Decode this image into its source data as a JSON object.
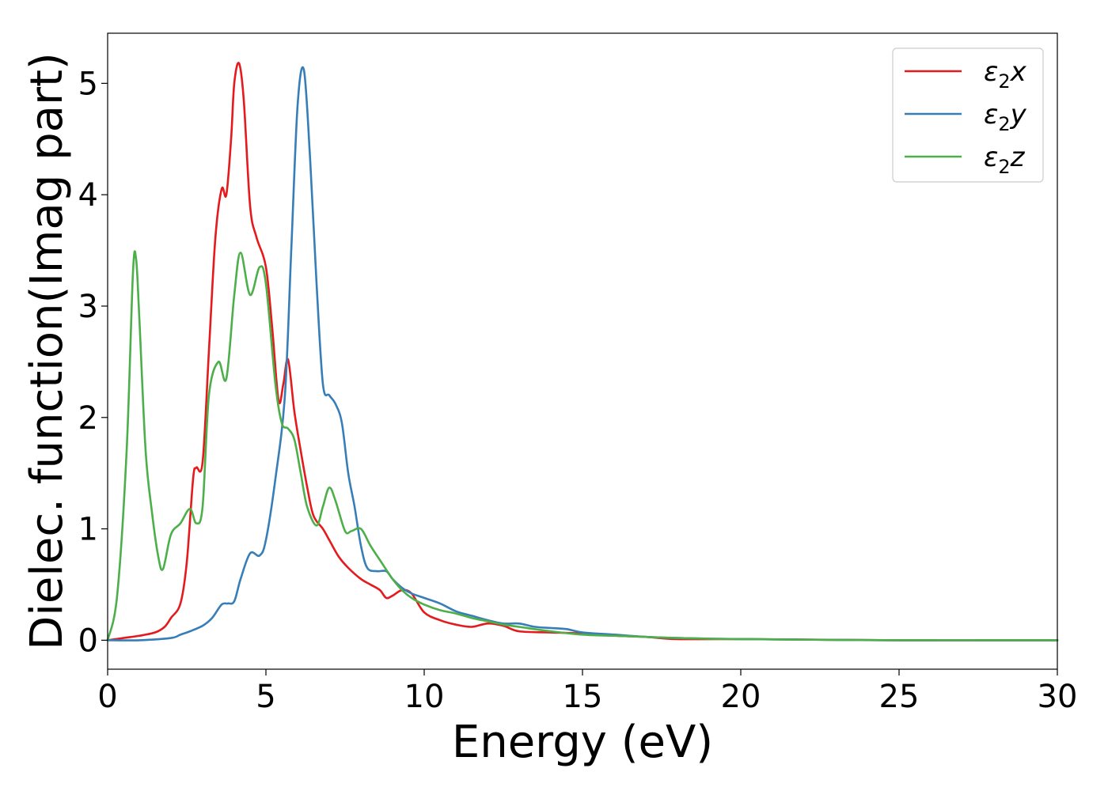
{
  "chart_data": {
    "type": "line",
    "xlabel": "Energy (eV)",
    "ylabel": "Dielec. function(Imag part)",
    "xlim": [
      0,
      30
    ],
    "ylim": [
      -0.26,
      5.45
    ],
    "xticks": [
      "0",
      "5",
      "10",
      "15",
      "20",
      "25",
      "30"
    ],
    "yticks": [
      "0",
      "1",
      "2",
      "3",
      "4",
      "5"
    ],
    "grid": false,
    "legend_position": "top-right",
    "series": [
      {
        "name": "ε2x",
        "legend_base": "ε",
        "legend_sub": "2",
        "legend_var": "x",
        "color": "#e41a1c",
        "x": [
          0,
          0.5,
          1.0,
          1.5,
          1.8,
          2.0,
          2.3,
          2.5,
          2.7,
          2.8,
          3.0,
          3.2,
          3.4,
          3.6,
          3.75,
          3.9,
          4.0,
          4.15,
          4.3,
          4.5,
          4.7,
          5.0,
          5.2,
          5.4,
          5.55,
          5.7,
          5.9,
          6.1,
          6.3,
          6.5,
          6.8,
          7.0,
          7.3,
          7.6,
          8.0,
          8.3,
          8.6,
          8.8,
          9.0,
          9.3,
          9.6,
          10.0,
          10.5,
          11.0,
          11.5,
          12.0,
          12.5,
          13.0,
          14.0,
          15.0,
          16.0,
          17.0,
          18.0,
          20.0,
          25.0,
          30.0
        ],
        "y": [
          0.0,
          0.02,
          0.04,
          0.07,
          0.12,
          0.2,
          0.33,
          0.7,
          1.45,
          1.55,
          1.6,
          2.6,
          3.6,
          4.05,
          4.0,
          4.5,
          5.0,
          5.18,
          4.85,
          3.9,
          3.62,
          3.35,
          2.8,
          2.15,
          2.3,
          2.52,
          2.05,
          1.7,
          1.38,
          1.12,
          1.0,
          0.9,
          0.75,
          0.65,
          0.55,
          0.5,
          0.45,
          0.38,
          0.4,
          0.45,
          0.42,
          0.25,
          0.18,
          0.14,
          0.12,
          0.15,
          0.13,
          0.08,
          0.07,
          0.06,
          0.04,
          0.03,
          0.01,
          0.01,
          0.0,
          0.0
        ]
      },
      {
        "name": "ε2y",
        "legend_base": "ε",
        "legend_sub": "2",
        "legend_var": "y",
        "color": "#377eb8",
        "x": [
          0,
          1.0,
          2.0,
          2.3,
          2.6,
          3.0,
          3.3,
          3.6,
          3.8,
          4.0,
          4.2,
          4.5,
          4.8,
          5.0,
          5.3,
          5.6,
          5.8,
          6.0,
          6.2,
          6.4,
          6.6,
          6.8,
          7.0,
          7.2,
          7.4,
          7.6,
          7.8,
          8.0,
          8.2,
          8.5,
          8.8,
          9.0,
          9.3,
          9.6,
          10.0,
          10.5,
          11.0,
          11.5,
          12.0,
          12.5,
          13.0,
          13.5,
          14.0,
          14.5,
          15.0,
          16.0,
          17.0,
          18.0,
          20.0,
          25.0,
          30.0
        ],
        "y": [
          0.0,
          0.0,
          0.02,
          0.05,
          0.08,
          0.13,
          0.2,
          0.32,
          0.33,
          0.35,
          0.55,
          0.78,
          0.76,
          0.9,
          1.45,
          2.2,
          3.5,
          4.8,
          5.12,
          4.3,
          3.2,
          2.3,
          2.2,
          2.12,
          1.95,
          1.5,
          1.2,
          0.85,
          0.65,
          0.62,
          0.62,
          0.55,
          0.47,
          0.42,
          0.38,
          0.33,
          0.26,
          0.22,
          0.18,
          0.15,
          0.15,
          0.12,
          0.11,
          0.1,
          0.07,
          0.05,
          0.03,
          0.02,
          0.01,
          0.0,
          0.0
        ]
      },
      {
        "name": "ε2z",
        "legend_base": "ε",
        "legend_sub": "2",
        "legend_var": "z",
        "color": "#4daf4a",
        "x": [
          0,
          0.3,
          0.6,
          0.8,
          0.9,
          1.0,
          1.2,
          1.4,
          1.6,
          1.75,
          2.0,
          2.3,
          2.6,
          2.8,
          3.0,
          3.2,
          3.5,
          3.75,
          4.0,
          4.2,
          4.5,
          4.8,
          5.0,
          5.3,
          5.5,
          5.7,
          5.9,
          6.1,
          6.3,
          6.6,
          6.8,
          7.0,
          7.2,
          7.5,
          7.7,
          8.0,
          8.3,
          8.6,
          9.0,
          9.3,
          9.6,
          10.0,
          10.5,
          11.0,
          11.5,
          12.0,
          12.5,
          13.0,
          14.0,
          15.0,
          16.0,
          17.0,
          18.0,
          20.0,
          25.0,
          30.0
        ],
        "y": [
          0.0,
          0.4,
          1.7,
          3.3,
          3.42,
          2.9,
          1.7,
          1.15,
          0.75,
          0.64,
          0.95,
          1.05,
          1.18,
          1.05,
          1.2,
          2.2,
          2.5,
          2.35,
          3.1,
          3.48,
          3.1,
          3.35,
          3.2,
          2.3,
          1.95,
          1.9,
          1.8,
          1.5,
          1.2,
          1.03,
          1.2,
          1.37,
          1.25,
          0.98,
          0.98,
          1.0,
          0.85,
          0.72,
          0.55,
          0.45,
          0.38,
          0.32,
          0.27,
          0.24,
          0.2,
          0.17,
          0.14,
          0.12,
          0.08,
          0.05,
          0.04,
          0.03,
          0.02,
          0.01,
          0.0,
          0.0
        ]
      }
    ]
  }
}
